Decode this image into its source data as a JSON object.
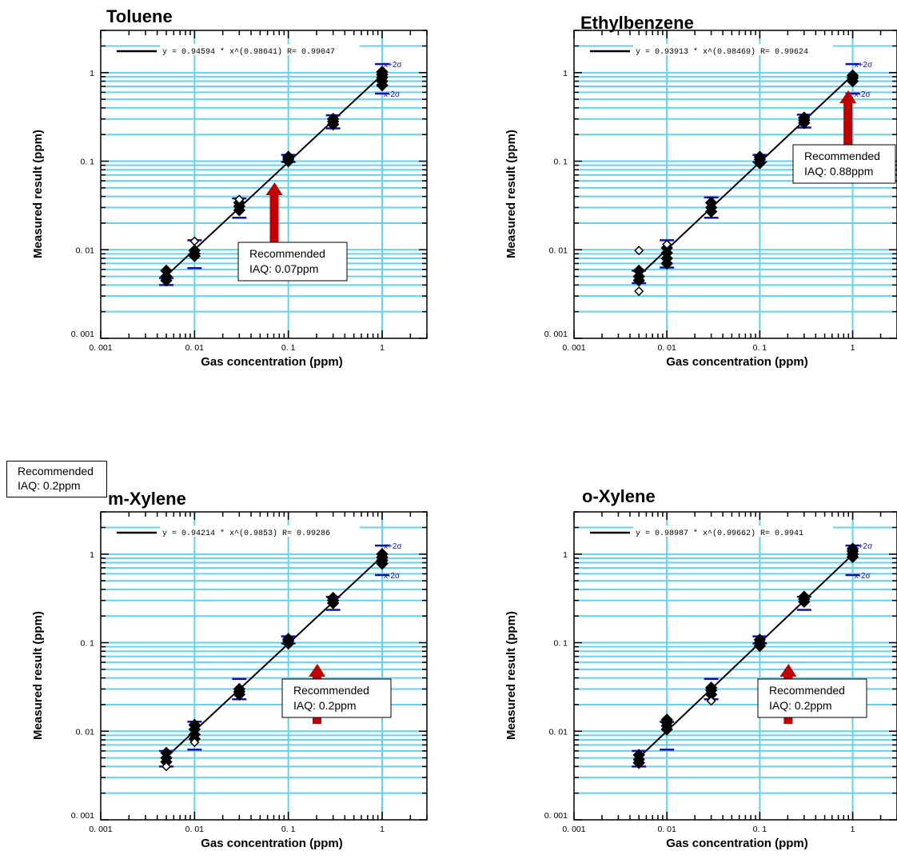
{
  "shared": {
    "xlabel": "Gas concentration (ppm)",
    "ylabel": "Measured result (ppm)",
    "tick_labels": [
      "0. 001",
      "0. 01",
      "0. 1",
      "1"
    ],
    "x_ticks": [
      0.001,
      0.01,
      0.1,
      1
    ],
    "y_ticks": [
      0.001,
      0.01,
      0.1,
      1
    ],
    "xlim": [
      0.001,
      3
    ],
    "ylim": [
      0.001,
      3
    ],
    "scale": "log",
    "grid": true,
    "colors": {
      "grid": "#5fd3ef",
      "sigma": "#1010b0",
      "arrow": "#c00000",
      "fit": "#000000",
      "marker": "#000000"
    },
    "sigma_labels": [
      "x+2σ",
      "x-2σ"
    ]
  },
  "chart_data": [
    {
      "type": "scatter",
      "title": "Toluene",
      "fit_label": "y = 0.94594 * x^(0.98641)     R= 0.99047",
      "fit": {
        "a": 0.94594,
        "b": 0.98641,
        "R": 0.99047
      },
      "x": [
        0.005,
        0.01,
        0.03,
        0.1,
        0.3,
        1.0
      ],
      "y_upper": [
        0.0048,
        0.0128,
        0.038,
        0.118,
        0.33,
        1.25
      ],
      "y_lower": [
        0.004,
        0.0062,
        0.023,
        0.098,
        0.235,
        0.58
      ],
      "points": [
        [
          0.005,
          0.0045
        ],
        [
          0.005,
          0.005
        ],
        [
          0.005,
          0.0058
        ],
        [
          0.01,
          0.0085
        ],
        [
          0.01,
          0.009
        ],
        [
          0.01,
          0.0098
        ],
        [
          0.03,
          0.028
        ],
        [
          0.03,
          0.031
        ],
        [
          0.03,
          0.034
        ],
        [
          0.1,
          0.1
        ],
        [
          0.1,
          0.106
        ],
        [
          0.1,
          0.112
        ],
        [
          0.3,
          0.26
        ],
        [
          0.3,
          0.28
        ],
        [
          0.3,
          0.3
        ],
        [
          1,
          0.72
        ],
        [
          1,
          0.8
        ],
        [
          1,
          0.88
        ],
        [
          1,
          0.95
        ],
        [
          1,
          1.02
        ]
      ],
      "open_points": [
        [
          0.01,
          0.0125
        ],
        [
          0.03,
          0.037
        ]
      ],
      "annotation": {
        "line1": "Recommended",
        "line2": "IAQ: 0.07ppm",
        "x": 0.07
      }
    },
    {
      "type": "scatter",
      "title": "Ethylbenzene",
      "fit_label": "y = 0.93913 * x^(0.98469)     R= 0.99624",
      "fit": {
        "a": 0.93913,
        "b": 0.98469,
        "R": 0.99624
      },
      "x": [
        0.005,
        0.01,
        0.03,
        0.1,
        0.3,
        1.0
      ],
      "y_upper": [
        0.0058,
        0.0128,
        0.039,
        0.118,
        0.335,
        1.25
      ],
      "y_lower": [
        0.0042,
        0.0063,
        0.023,
        0.098,
        0.24,
        0.58
      ],
      "points": [
        [
          0.005,
          0.0045
        ],
        [
          0.005,
          0.005
        ],
        [
          0.005,
          0.0058
        ],
        [
          0.01,
          0.007
        ],
        [
          0.01,
          0.008
        ],
        [
          0.01,
          0.0092
        ],
        [
          0.01,
          0.0105
        ],
        [
          0.03,
          0.027
        ],
        [
          0.03,
          0.03
        ],
        [
          0.03,
          0.034
        ],
        [
          0.1,
          0.095
        ],
        [
          0.1,
          0.105
        ],
        [
          0.1,
          0.112
        ],
        [
          0.3,
          0.27
        ],
        [
          0.3,
          0.29
        ],
        [
          0.3,
          0.31
        ],
        [
          1,
          0.8
        ],
        [
          1,
          0.87
        ],
        [
          1,
          0.93
        ]
      ],
      "open_points": [
        [
          0.005,
          0.0098
        ],
        [
          0.005,
          0.0034
        ],
        [
          0.01,
          0.0115
        ]
      ],
      "annotation": {
        "line1": "Recommended",
        "line2": "IAQ: 0.88ppm",
        "x": 0.88
      }
    },
    {
      "type": "scatter",
      "title": "m-Xylene",
      "fit_label": "y = 0.94214 * x^(0.9853)     R= 0.99286",
      "fit": {
        "a": 0.94214,
        "b": 0.9853,
        "R": 0.99286
      },
      "x": [
        0.005,
        0.01,
        0.03,
        0.1,
        0.3,
        1.0
      ],
      "y_upper": [
        0.006,
        0.0128,
        0.039,
        0.118,
        0.33,
        1.25
      ],
      "y_lower": [
        0.004,
        0.0062,
        0.023,
        0.098,
        0.235,
        0.58
      ],
      "points": [
        [
          0.005,
          0.0045
        ],
        [
          0.005,
          0.005
        ],
        [
          0.005,
          0.0057
        ],
        [
          0.01,
          0.0082
        ],
        [
          0.01,
          0.0092
        ],
        [
          0.01,
          0.0105
        ],
        [
          0.01,
          0.0118
        ],
        [
          0.03,
          0.026
        ],
        [
          0.03,
          0.028
        ],
        [
          0.03,
          0.03
        ],
        [
          0.1,
          0.098
        ],
        [
          0.1,
          0.105
        ],
        [
          0.1,
          0.11
        ],
        [
          0.3,
          0.28
        ],
        [
          0.3,
          0.3
        ],
        [
          0.3,
          0.32
        ],
        [
          1,
          0.78
        ],
        [
          1,
          0.85
        ],
        [
          1,
          0.92
        ],
        [
          1,
          1.0
        ]
      ],
      "open_points": [
        [
          0.005,
          0.004
        ],
        [
          0.01,
          0.0075
        ]
      ],
      "annotation": {
        "line1": "Recommended",
        "line2": "IAQ: 0.2ppm",
        "x": 0.2
      }
    },
    {
      "type": "scatter",
      "title": "o-Xylene",
      "fit_label": "y = 0.98987 * x^(0.99662)     R= 0.9941",
      "fit": {
        "a": 0.98987,
        "b": 0.99662,
        "R": 0.9941
      },
      "x": [
        0.005,
        0.01,
        0.03,
        0.1,
        0.3,
        1.0
      ],
      "y_upper": [
        0.006,
        0.0128,
        0.039,
        0.118,
        0.33,
        1.25
      ],
      "y_lower": [
        0.004,
        0.0062,
        0.023,
        0.098,
        0.235,
        0.58
      ],
      "points": [
        [
          0.005,
          0.0044
        ],
        [
          0.005,
          0.0048
        ],
        [
          0.005,
          0.0054
        ],
        [
          0.01,
          0.0105
        ],
        [
          0.01,
          0.0115
        ],
        [
          0.01,
          0.0125
        ],
        [
          0.01,
          0.0135
        ],
        [
          0.03,
          0.026
        ],
        [
          0.03,
          0.029
        ],
        [
          0.03,
          0.031
        ],
        [
          0.1,
          0.092
        ],
        [
          0.1,
          0.1
        ],
        [
          0.1,
          0.108
        ],
        [
          0.3,
          0.29
        ],
        [
          0.3,
          0.31
        ],
        [
          0.3,
          0.33
        ],
        [
          1,
          0.93
        ],
        [
          1,
          1.0
        ],
        [
          1,
          1.08
        ],
        [
          1,
          1.15
        ]
      ],
      "open_points": [
        [
          0.03,
          0.022
        ]
      ],
      "annotation": {
        "line1": "Recommended",
        "line2": "IAQ: 0.2ppm",
        "x": 0.2
      }
    }
  ],
  "stray_note": {
    "line1": "Recommended",
    "line2": "IAQ: 0.2ppm"
  }
}
